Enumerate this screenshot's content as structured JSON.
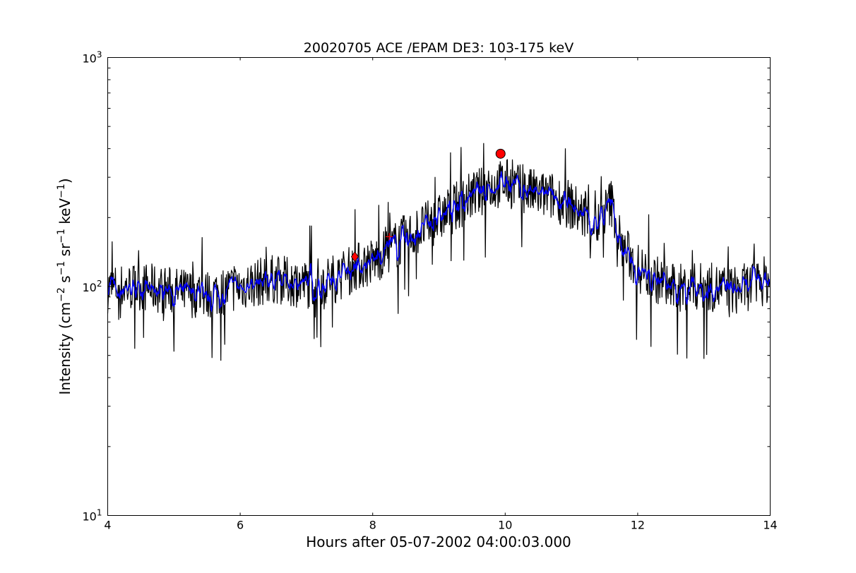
{
  "chart_data": {
    "type": "line",
    "title": "20020705 ACE /EPAM DE3: 103-175 keV",
    "xlabel": "Hours after 05-07-2002 04:00:03.000",
    "ylabel": {
      "prefix": "Intensity (cm",
      "exp1": "−2",
      "mid1": " s",
      "exp2": "−1",
      "mid2": " sr",
      "exp3": "−1",
      "mid3": " keV",
      "exp4": "−1",
      "suffix": ")"
    },
    "xlim": [
      4,
      14
    ],
    "ylim": [
      10,
      1000
    ],
    "yscale": "log",
    "x_ticks": [
      "4",
      "6",
      "8",
      "10",
      "12",
      "14"
    ],
    "y_ticks": [
      {
        "base": "10",
        "exp": "1"
      },
      {
        "base": "10",
        "exp": "2"
      },
      {
        "base": "10",
        "exp": "3"
      }
    ],
    "grid": false,
    "colors": {
      "raw": "#000000",
      "smoothed": "#0000ff",
      "marker": "#ff0000"
    },
    "series": [
      {
        "role": "raw",
        "envelope": {
          "x": [
            4.0,
            4.5,
            5.0,
            5.5,
            6.0,
            6.5,
            7.0,
            7.5,
            7.75,
            8.0,
            8.25,
            8.5,
            8.75,
            9.0,
            9.25,
            9.5,
            9.75,
            10.0,
            10.25,
            10.5,
            10.75,
            11.0,
            11.25,
            11.4,
            11.6,
            11.75,
            12.0,
            12.5,
            13.0,
            13.5,
            14.0
          ],
          "y": [
            98,
            100,
            95,
            92,
            100,
            108,
            102,
            110,
            122,
            128,
            145,
            163,
            180,
            198,
            222,
            250,
            268,
            285,
            265,
            252,
            245,
            225,
            195,
            185,
            235,
            150,
            120,
            98,
            100,
            96,
            108
          ]
        }
      },
      {
        "role": "smoothed",
        "envelope": {
          "x": [
            4.0,
            4.5,
            5.0,
            5.5,
            6.0,
            6.5,
            7.0,
            7.5,
            7.75,
            8.0,
            8.25,
            8.5,
            8.75,
            9.0,
            9.25,
            9.5,
            9.75,
            10.0,
            10.25,
            10.5,
            10.75,
            11.0,
            11.25,
            11.4,
            11.6,
            11.75,
            12.0,
            12.5,
            13.0,
            13.5,
            14.0
          ],
          "y": [
            98,
            100,
            95,
            92,
            100,
            108,
            102,
            110,
            122,
            128,
            145,
            163,
            180,
            198,
            222,
            250,
            268,
            285,
            265,
            252,
            245,
            225,
            195,
            185,
            235,
            150,
            120,
            98,
            100,
            96,
            108
          ]
        }
      }
    ],
    "markers": [
      {
        "x": 7.73,
        "y": 135,
        "shape": "diamond"
      },
      {
        "x": 9.93,
        "y": 380,
        "shape": "circle"
      },
      {
        "x": 8.25,
        "y": 165,
        "shape": "plus"
      }
    ]
  }
}
